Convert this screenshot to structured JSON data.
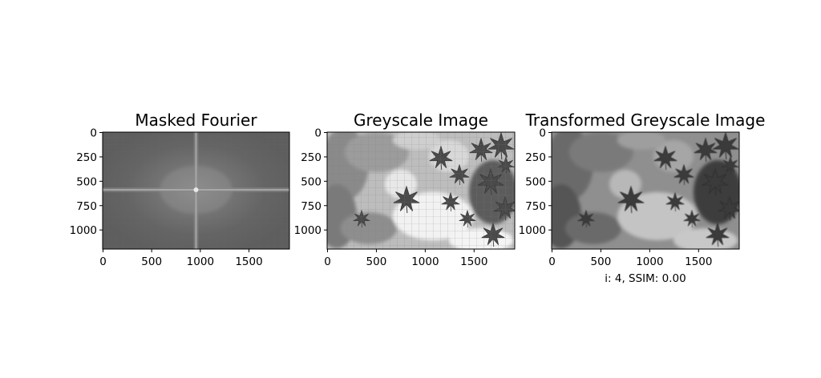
{
  "chart_data": [
    {
      "type": "image",
      "title": "Masked Fourier",
      "xlim": [
        0,
        1920
      ],
      "ylim": [
        1200,
        0
      ],
      "xticks": [
        0,
        500,
        1000,
        1500
      ],
      "yticks": [
        0,
        250,
        500,
        750,
        1000
      ],
      "content": "log-magnitude Fourier spectrum, bright center with cross-shaped streaks"
    },
    {
      "type": "image",
      "title": "Greyscale Image",
      "xlim": [
        0,
        1920
      ],
      "ylim": [
        1200,
        0
      ],
      "xticks": [
        0,
        500,
        1000,
        1500
      ],
      "yticks": [
        0,
        250,
        500,
        750,
        1000
      ],
      "content": "greyscale photo of maple leaves with fine grid overlay"
    },
    {
      "type": "image",
      "title": "Transformed Greyscale Image",
      "xlim": [
        0,
        1920
      ],
      "ylim": [
        1200,
        0
      ],
      "xticks": [
        0,
        500,
        1000,
        1500
      ],
      "yticks": [
        0,
        250,
        500,
        750,
        1000
      ],
      "caption": "i: 4, SSIM: 0.00",
      "content": "blurred reconstruction of maple-leaf photo"
    }
  ]
}
